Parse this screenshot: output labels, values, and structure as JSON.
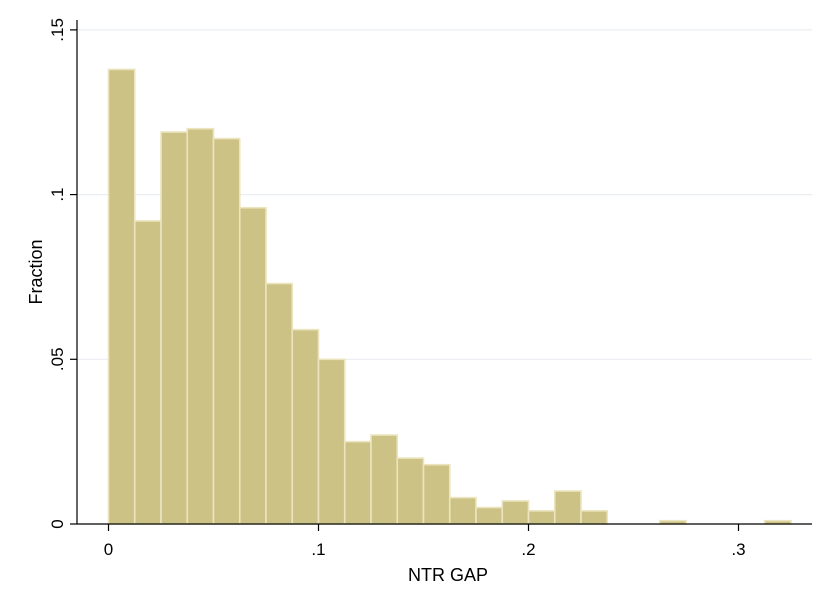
{
  "chart_data": {
    "type": "bar",
    "title": "",
    "xlabel": "NTR GAP",
    "ylabel": "Fraction",
    "xlim": [
      -0.015,
      0.335
    ],
    "ylim": [
      0,
      0.153
    ],
    "grid": true,
    "legend": "none",
    "x_ticks": [
      {
        "value": 0,
        "label": "0"
      },
      {
        "value": 0.1,
        "label": ".1"
      },
      {
        "value": 0.2,
        "label": ".2"
      },
      {
        "value": 0.3,
        "label": ".3"
      }
    ],
    "y_ticks": [
      {
        "value": 0,
        "label": "0"
      },
      {
        "value": 0.05,
        "label": ".05"
      },
      {
        "value": 0.1,
        "label": ".1"
      },
      {
        "value": 0.15,
        "label": ".15"
      }
    ],
    "bin_width": 0.0125,
    "bins": [
      {
        "start": 0.0,
        "value": 0.138
      },
      {
        "start": 0.0125,
        "value": 0.092
      },
      {
        "start": 0.025,
        "value": 0.119
      },
      {
        "start": 0.0375,
        "value": 0.12
      },
      {
        "start": 0.05,
        "value": 0.117
      },
      {
        "start": 0.0625,
        "value": 0.096
      },
      {
        "start": 0.075,
        "value": 0.073
      },
      {
        "start": 0.0875,
        "value": 0.059
      },
      {
        "start": 0.1,
        "value": 0.05
      },
      {
        "start": 0.1125,
        "value": 0.025
      },
      {
        "start": 0.125,
        "value": 0.027
      },
      {
        "start": 0.1375,
        "value": 0.02
      },
      {
        "start": 0.15,
        "value": 0.018
      },
      {
        "start": 0.1625,
        "value": 0.008
      },
      {
        "start": 0.175,
        "value": 0.005
      },
      {
        "start": 0.1875,
        "value": 0.007
      },
      {
        "start": 0.2,
        "value": 0.004
      },
      {
        "start": 0.2125,
        "value": 0.01
      },
      {
        "start": 0.225,
        "value": 0.004
      },
      {
        "start": 0.2625,
        "value": 0.001
      },
      {
        "start": 0.3125,
        "value": 0.001
      }
    ],
    "colors": {
      "bar_fill": "#cdc285",
      "bar_stroke": "#ebe4be",
      "grid": "#e9eef1",
      "axis": "#000000",
      "background": "#ffffff"
    }
  }
}
